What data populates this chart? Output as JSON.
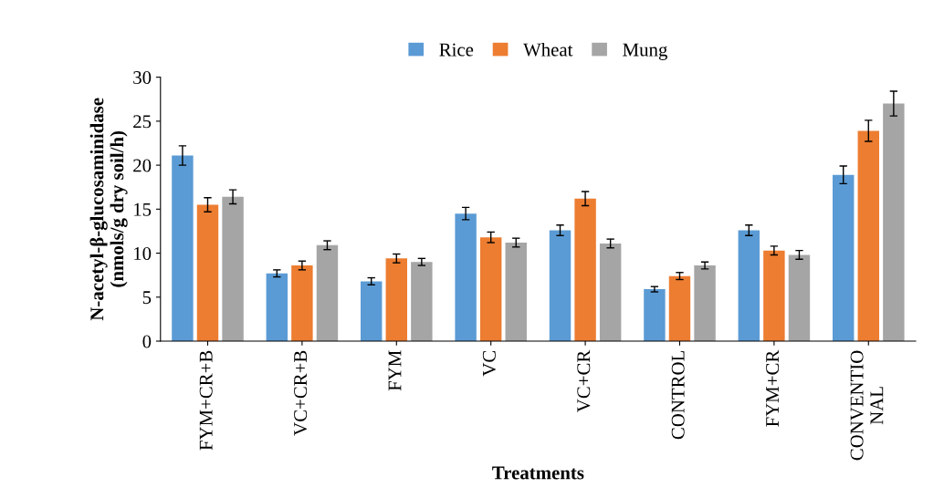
{
  "chart_data": {
    "type": "bar",
    "xlabel": "Treatments",
    "ylabel": "N-acetyl-β-glucosaminidase\n(nmols/g dry soil/h)",
    "categories": [
      "FYM+CR+B",
      "VC+CR+B",
      "FYM",
      "VC",
      "VC+CR",
      "CONTROL",
      "FYM+CR",
      "CONVENTIO\nNAL"
    ],
    "series": [
      {
        "name": "Rice",
        "color": "#5b9bd5",
        "values": [
          21.1,
          7.7,
          6.8,
          14.5,
          12.6,
          5.9,
          12.6,
          18.9
        ],
        "errors": [
          1.1,
          0.4,
          0.4,
          0.7,
          0.6,
          0.3,
          0.6,
          1.0
        ]
      },
      {
        "name": "Wheat",
        "color": "#ed7d31",
        "values": [
          15.5,
          8.6,
          9.4,
          11.8,
          16.2,
          7.4,
          10.3,
          23.9
        ],
        "errors": [
          0.8,
          0.5,
          0.5,
          0.6,
          0.8,
          0.4,
          0.5,
          1.2
        ]
      },
      {
        "name": "Mung",
        "color": "#a5a5a5",
        "values": [
          16.4,
          10.9,
          9.0,
          11.2,
          11.1,
          8.6,
          9.8,
          27.0
        ],
        "errors": [
          0.8,
          0.5,
          0.4,
          0.5,
          0.5,
          0.4,
          0.5,
          1.4
        ]
      }
    ],
    "ylim": [
      0,
      30
    ],
    "yticks": [
      0,
      5,
      10,
      15,
      20,
      25,
      30
    ],
    "grid": false,
    "legend": "top"
  }
}
